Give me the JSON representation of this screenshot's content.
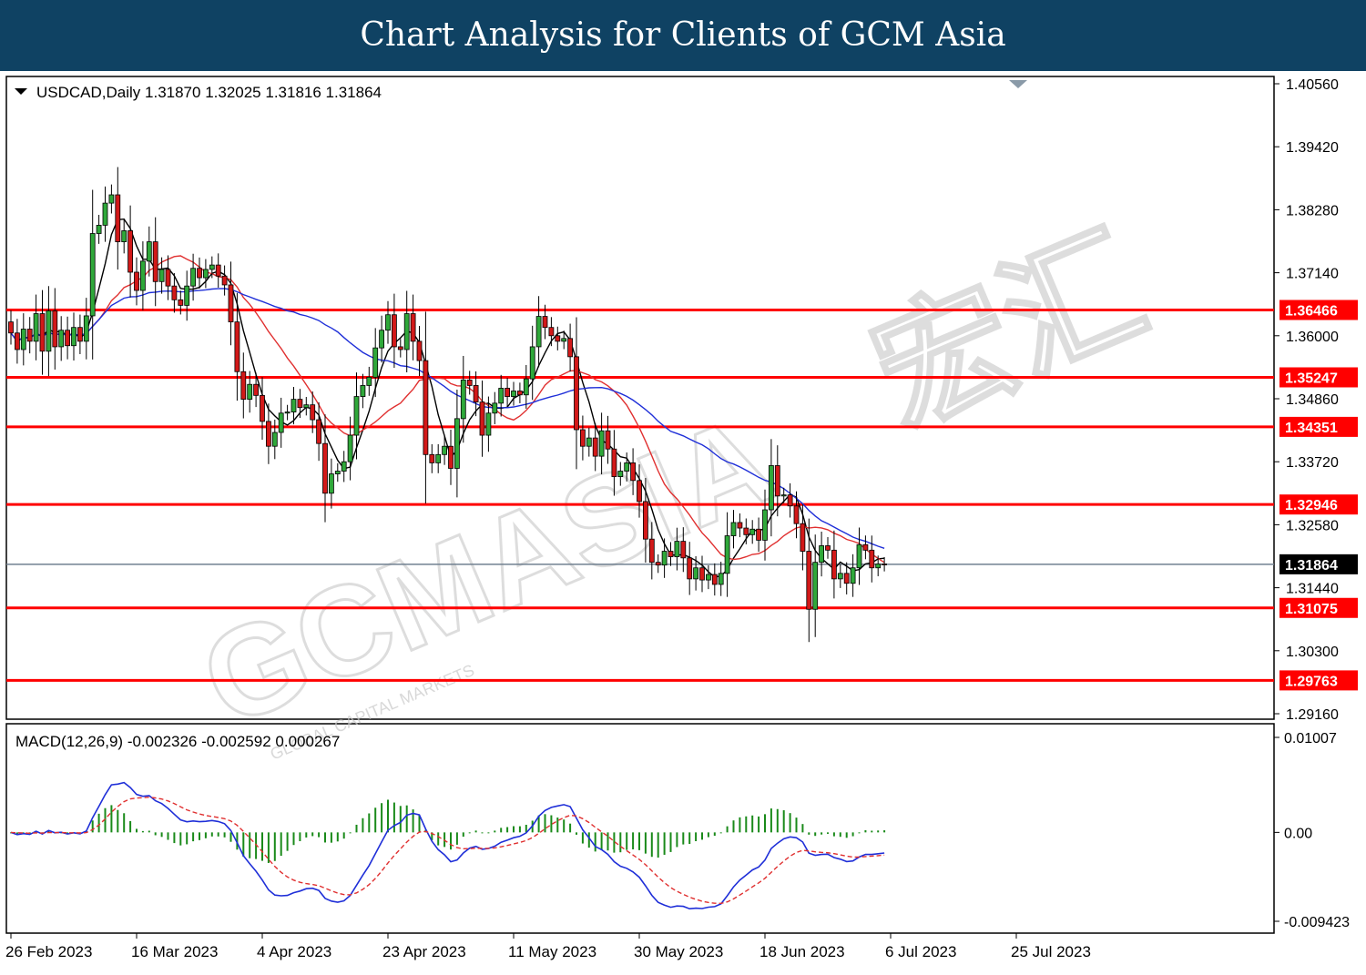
{
  "header": {
    "title": "Chart Analysis for Clients of GCM Asia"
  },
  "watermark": {
    "brand": "GCMASIA",
    "tagline": "GLOBAL CAPITAL MARKETS",
    "cjk": "宏汇"
  },
  "chart_data": [
    {
      "type": "candlestick",
      "symbol_info": "USDCAD,Daily  1.31870 1.32025 1.31816 1.31864",
      "x_labels": [
        "26 Feb 2023",
        "16 Mar 2023",
        "4 Apr 2023",
        "23 Apr 2023",
        "11 May 2023",
        "30 May 2023",
        "18 Jun 2023",
        "6 Jul 2023",
        "25 Jul 2023"
      ],
      "y_ticks": [
        "1.40560",
        "1.39420",
        "1.38280",
        "1.37140",
        "1.36000",
        "1.34860",
        "1.33720",
        "1.32580",
        "1.31440",
        "1.30300",
        "1.29160"
      ],
      "ylim": [
        1.2916,
        1.4056
      ],
      "current_price": "1.31864",
      "levels": [
        "1.36466",
        "1.35247",
        "1.34351",
        "1.32946",
        "1.31075",
        "1.29763"
      ],
      "close": [
        1.3605,
        1.3575,
        1.3612,
        1.359,
        1.364,
        1.3572,
        1.3645,
        1.358,
        1.361,
        1.3582,
        1.3615,
        1.359,
        1.3636,
        1.3785,
        1.38,
        1.384,
        1.3855,
        1.377,
        1.379,
        1.3715,
        1.3682,
        1.3735,
        1.377,
        1.3698,
        1.372,
        1.369,
        1.3665,
        1.3655,
        1.369,
        1.3722,
        1.3705,
        1.372,
        1.3728,
        1.3708,
        1.3692,
        1.3625,
        1.3535,
        1.3485,
        1.3512,
        1.3492,
        1.3445,
        1.34,
        1.3425,
        1.346,
        1.3462,
        1.3485,
        1.347,
        1.3475,
        1.3448,
        1.3405,
        1.3315,
        1.335,
        1.3355,
        1.3372,
        1.342,
        1.349,
        1.351,
        1.3525,
        1.3578,
        1.361,
        1.3638,
        1.358,
        1.3575,
        1.364,
        1.359,
        1.3555,
        1.3385,
        1.337,
        1.3385,
        1.34,
        1.336,
        1.345,
        1.352,
        1.351,
        1.348,
        1.342,
        1.346,
        1.3478,
        1.3505,
        1.349,
        1.35,
        1.3493,
        1.3522,
        1.358,
        1.3635,
        1.3615,
        1.36,
        1.359,
        1.3595,
        1.3562,
        1.343,
        1.34,
        1.3415,
        1.3382,
        1.3428,
        1.3395,
        1.3345,
        1.3355,
        1.337,
        1.3338,
        1.33,
        1.3232,
        1.319,
        1.3185,
        1.321,
        1.32,
        1.3228,
        1.3198,
        1.316,
        1.318,
        1.3158,
        1.3168,
        1.315,
        1.317,
        1.3238,
        1.3262,
        1.3252,
        1.324,
        1.325,
        1.323,
        1.3285,
        1.3365,
        1.331,
        1.3312,
        1.3292,
        1.326,
        1.321,
        1.3105,
        1.319,
        1.322,
        1.3212,
        1.316,
        1.317,
        1.3152,
        1.318,
        1.3222,
        1.3212,
        1.318,
        1.3187,
        1.3186
      ],
      "series": [
        {
          "name": "MA fast",
          "color": "#000000"
        },
        {
          "name": "MA mid",
          "color": "#e03030"
        },
        {
          "name": "MA slow",
          "color": "#1f2fd8"
        }
      ]
    },
    {
      "type": "bar+line",
      "label": "MACD(12,26,9) -0.002326 -0.002592 0.000267",
      "y_ticks": [
        "0.01007",
        "0.00",
        "-0.009423"
      ],
      "ylim": [
        -0.009423,
        0.01007
      ],
      "series": [
        {
          "name": "Histogram",
          "color": "#1a8a1a"
        },
        {
          "name": "MACD",
          "color": "#1f2fd8"
        },
        {
          "name": "Signal",
          "color": "#e03030"
        }
      ]
    }
  ]
}
